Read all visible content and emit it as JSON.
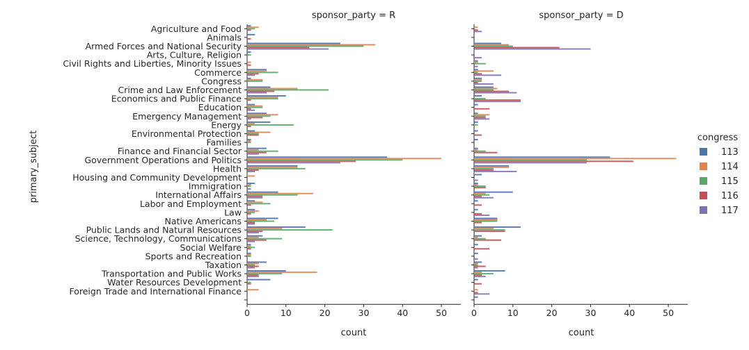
{
  "chart_data": {
    "type": "bar",
    "orientation": "horizontal",
    "facet_var": "sponsor_party",
    "facets": [
      {
        "title": "sponsor_party = R"
      },
      {
        "title": "sponsor_party = D"
      }
    ],
    "ylabel": "primary_subject",
    "xlabel": "count",
    "xlim": [
      0,
      55
    ],
    "xticks": [
      0,
      10,
      20,
      30,
      40,
      50
    ],
    "legend": {
      "title": "congress",
      "placement": "right"
    },
    "categories": [
      "Agriculture and Food",
      "Animals",
      "Armed Forces and National Security",
      "Arts, Culture, Religion",
      "Civil Rights and Liberties, Minority Issues",
      "Commerce",
      "Congress",
      "Crime and Law Enforcement",
      "Economics and Public Finance",
      "Education",
      "Emergency Management",
      "Energy",
      "Environmental Protection",
      "Families",
      "Finance and Financial Sector",
      "Government Operations and Politics",
      "Health",
      "Housing and Community Development",
      "Immigration",
      "International Affairs",
      "Labor and Employment",
      "Law",
      "Native Americans",
      "Public Lands and Natural Resources",
      "Science, Technology, Communications",
      "Social Welfare",
      "Sports and Recreation",
      "Taxation",
      "Transportation and Public Works",
      "Water Resources Development",
      "Foreign Trade and International Finance",
      ""
    ],
    "series": [
      {
        "name": "113",
        "color": "#4c72b0",
        "values_R": [
          1,
          2,
          24,
          1,
          0,
          5,
          1,
          6,
          10,
          2,
          5,
          6,
          2,
          1,
          5,
          36,
          13,
          0,
          2,
          8,
          2,
          2,
          8,
          15,
          4,
          1,
          1,
          5,
          10,
          6,
          0,
          0
        ],
        "values_D": [
          0,
          0,
          7,
          0,
          1,
          1,
          2,
          5,
          2,
          1,
          1,
          1,
          1,
          1,
          1,
          35,
          9,
          2,
          1,
          10,
          1,
          1,
          6,
          12,
          2,
          1,
          1,
          2,
          8,
          1,
          0,
          1
        ]
      },
      {
        "name": "114",
        "color": "#dd8452",
        "values_R": [
          3,
          0,
          33,
          0,
          1,
          5,
          4,
          13,
          8,
          4,
          8,
          2,
          6,
          1,
          3,
          50,
          13,
          2,
          1,
          17,
          4,
          3,
          5,
          9,
          3,
          1,
          1,
          3,
          18,
          0,
          3,
          0
        ],
        "values_D": [
          1,
          0,
          9,
          0,
          1,
          5,
          2,
          6,
          0,
          0,
          4,
          0,
          0,
          0,
          1,
          52,
          9,
          0,
          1,
          3,
          0,
          0,
          6,
          5,
          1,
          0,
          0,
          1,
          2,
          0,
          1,
          0
        ]
      },
      {
        "name": "115",
        "color": "#55a868",
        "values_R": [
          2,
          0,
          30,
          1,
          0,
          8,
          4,
          21,
          8,
          4,
          6,
          12,
          3,
          1,
          8,
          40,
          15,
          0,
          1,
          13,
          6,
          2,
          7,
          22,
          9,
          2,
          1,
          2,
          9,
          1,
          0,
          0
        ],
        "values_D": [
          0,
          0,
          10,
          0,
          3,
          1,
          2,
          5,
          3,
          0,
          3,
          1,
          0,
          0,
          3,
          29,
          5,
          0,
          3,
          4,
          0,
          0,
          6,
          8,
          3,
          0,
          0,
          1,
          5,
          0,
          0,
          0
        ]
      },
      {
        "name": "116",
        "color": "#c44e52",
        "values_R": [
          1,
          1,
          16,
          0,
          1,
          3,
          0,
          7,
          1,
          1,
          4,
          1,
          3,
          0,
          5,
          28,
          3,
          0,
          0,
          4,
          1,
          1,
          2,
          4,
          5,
          1,
          0,
          3,
          3,
          1,
          0,
          0
        ],
        "values_D": [
          1,
          0,
          22,
          0,
          0,
          2,
          1,
          9,
          12,
          4,
          3,
          0,
          2,
          0,
          6,
          41,
          5,
          0,
          3,
          2,
          2,
          2,
          2,
          8,
          7,
          4,
          0,
          3,
          2,
          2,
          1,
          0
        ]
      },
      {
        "name": "117",
        "color": "#8172b3",
        "values_R": [
          0,
          0,
          21,
          0,
          0,
          2,
          0,
          5,
          0,
          2,
          1,
          0,
          0,
          0,
          3,
          24,
          2,
          0,
          1,
          4,
          0,
          0,
          2,
          3,
          2,
          0,
          0,
          2,
          3,
          0,
          0,
          0
        ],
        "values_D": [
          2,
          0,
          30,
          2,
          1,
          7,
          5,
          11,
          12,
          0,
          4,
          0,
          0,
          0,
          0,
          29,
          11,
          1,
          0,
          5,
          0,
          4,
          0,
          0,
          0,
          0,
          1,
          1,
          3,
          0,
          4,
          0
        ]
      }
    ]
  }
}
